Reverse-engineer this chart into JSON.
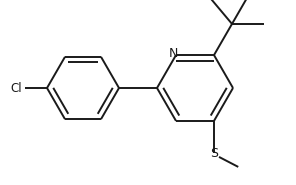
{
  "bg_color": "#ffffff",
  "line_color": "#1a1a1a",
  "line_width": 1.4,
  "figsize": [
    2.96,
    1.85
  ],
  "dpi": 100,
  "xlim": [
    0,
    296
  ],
  "ylim": [
    0,
    185
  ]
}
